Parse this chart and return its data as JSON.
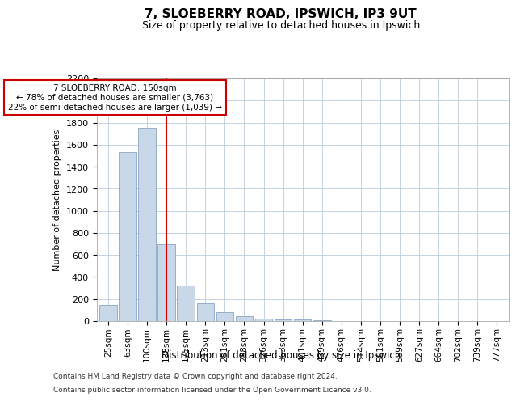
{
  "title1": "7, SLOEBERRY ROAD, IPSWICH, IP3 9UT",
  "title2": "Size of property relative to detached houses in Ipswich",
  "xlabel": "Distribution of detached houses by size in Ipswich",
  "ylabel": "Number of detached properties",
  "footnote_line1": "Contains HM Land Registry data © Crown copyright and database right 2024.",
  "footnote_line2": "Contains public sector information licensed under the Open Government Licence v3.0.",
  "bar_color": "#c8d8e8",
  "bar_edge_color": "#7799bb",
  "grid_color": "#bbccdd",
  "annotation_box_color": "#cc0000",
  "vline_color": "#cc0000",
  "categories": [
    "25sqm",
    "63sqm",
    "100sqm",
    "138sqm",
    "175sqm",
    "213sqm",
    "251sqm",
    "288sqm",
    "326sqm",
    "363sqm",
    "401sqm",
    "439sqm",
    "476sqm",
    "514sqm",
    "551sqm",
    "589sqm",
    "627sqm",
    "664sqm",
    "702sqm",
    "739sqm",
    "777sqm"
  ],
  "values": [
    150,
    1530,
    1750,
    700,
    320,
    160,
    80,
    45,
    25,
    18,
    12,
    5,
    3,
    0,
    0,
    0,
    0,
    0,
    0,
    0,
    0
  ],
  "vline_index": 3,
  "annotation_text": "7 SLOEBERRY ROAD: 150sqm\n← 78% of detached houses are smaller (3,763)\n22% of semi-detached houses are larger (1,039) →",
  "ylim": [
    0,
    2200
  ],
  "yticks": [
    0,
    200,
    400,
    600,
    800,
    1000,
    1200,
    1400,
    1600,
    1800,
    2000,
    2200
  ],
  "background_color": "#ffffff",
  "plot_bg_color": "#ffffff",
  "title1_fontsize": 11,
  "title2_fontsize": 9
}
